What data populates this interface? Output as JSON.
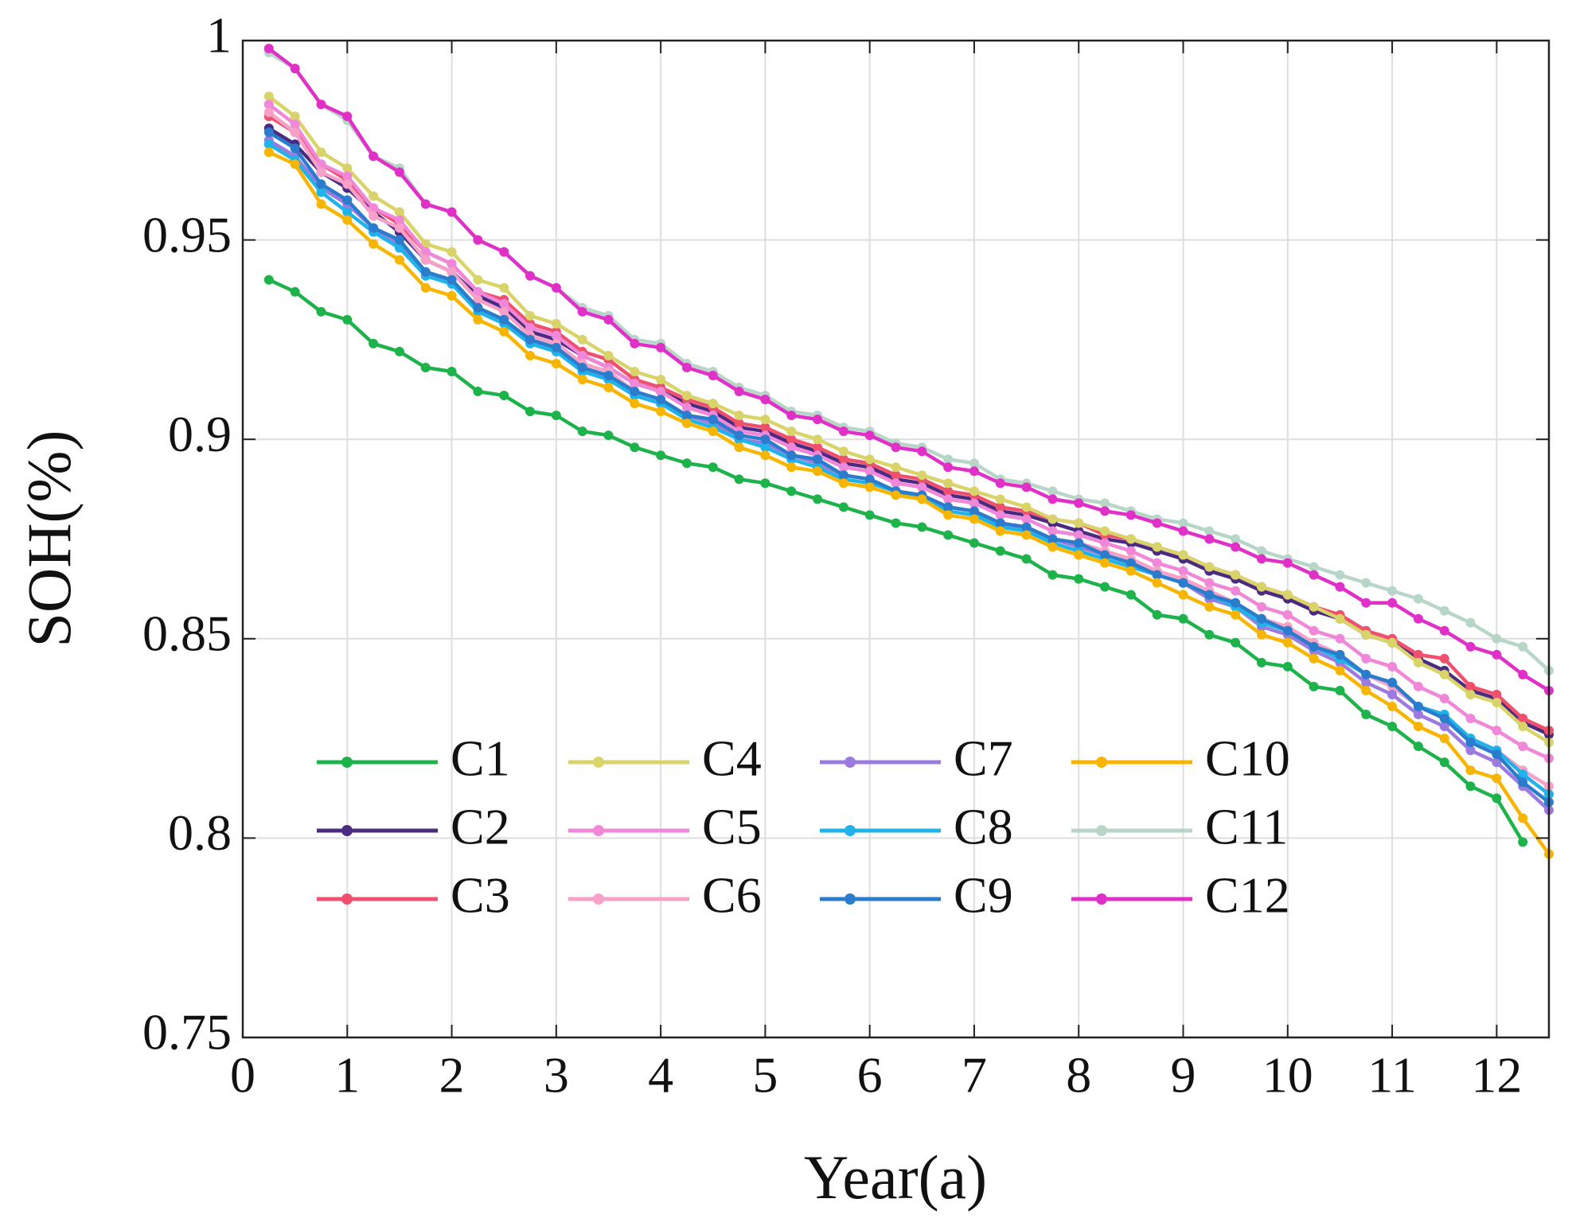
{
  "chart_data": {
    "type": "line",
    "xlabel": "Year(a)",
    "ylabel": "SOH(%)",
    "xlim": [
      0,
      12.5
    ],
    "ylim": [
      0.75,
      1
    ],
    "xticks": [
      0,
      1,
      2,
      3,
      4,
      5,
      6,
      7,
      8,
      9,
      10,
      11,
      12
    ],
    "yticks": [
      0.75,
      0.8,
      0.85,
      0.9,
      0.95,
      1
    ],
    "grid": true,
    "legend": "lower left",
    "x": [
      0.25,
      0.5,
      0.75,
      1,
      1.25,
      1.5,
      1.75,
      2,
      2.25,
      2.5,
      2.75,
      3,
      3.25,
      3.5,
      3.75,
      4,
      4.25,
      4.5,
      4.75,
      5,
      5.25,
      5.5,
      5.75,
      6,
      6.25,
      6.5,
      6.75,
      7,
      7.25,
      7.5,
      7.75,
      8,
      8.25,
      8.5,
      8.75,
      9,
      9.25,
      9.5,
      9.75,
      10,
      10.25,
      10.5,
      10.75,
      11,
      11.25,
      11.5,
      11.75,
      12,
      12.25,
      12.5
    ],
    "series": [
      {
        "name": "C1",
        "color": "#1db34a",
        "values": [
          0.94,
          0.937,
          0.932,
          0.93,
          0.924,
          0.922,
          0.918,
          0.917,
          0.912,
          0.911,
          0.907,
          0.906,
          0.902,
          0.901,
          0.898,
          0.896,
          0.894,
          0.893,
          0.89,
          0.889,
          0.887,
          0.885,
          0.883,
          0.881,
          0.879,
          0.878,
          0.876,
          0.874,
          0.872,
          0.87,
          0.866,
          0.865,
          0.863,
          0.861,
          0.856,
          0.855,
          0.851,
          0.849,
          0.844,
          0.843,
          0.838,
          0.837,
          0.831,
          0.828,
          0.823,
          0.819,
          0.813,
          0.81,
          0.799,
          null
        ]
      },
      {
        "name": "C2",
        "color": "#4b2a82",
        "values": [
          0.978,
          0.974,
          0.967,
          0.963,
          0.957,
          0.952,
          0.945,
          0.942,
          0.936,
          0.933,
          0.927,
          0.925,
          0.921,
          0.918,
          0.914,
          0.912,
          0.909,
          0.907,
          0.903,
          0.902,
          0.899,
          0.897,
          0.894,
          0.893,
          0.89,
          0.889,
          0.886,
          0.885,
          0.882,
          0.881,
          0.879,
          0.877,
          0.875,
          0.874,
          0.872,
          0.87,
          0.867,
          0.865,
          0.862,
          0.86,
          0.857,
          0.855,
          0.851,
          0.849,
          0.845,
          0.842,
          0.837,
          0.835,
          0.829,
          0.826
        ]
      },
      {
        "name": "C3",
        "color": "#f0506e",
        "values": [
          0.981,
          0.977,
          0.969,
          0.965,
          0.958,
          0.954,
          0.947,
          0.944,
          0.937,
          0.935,
          0.929,
          0.927,
          0.922,
          0.92,
          0.915,
          0.913,
          0.91,
          0.908,
          0.904,
          0.903,
          0.9,
          0.898,
          0.895,
          0.894,
          0.891,
          0.89,
          0.887,
          0.886,
          0.883,
          0.882,
          0.88,
          0.879,
          0.876,
          0.875,
          0.873,
          0.871,
          0.868,
          0.866,
          0.863,
          0.861,
          0.858,
          0.856,
          0.852,
          0.85,
          0.846,
          0.845,
          0.838,
          0.836,
          0.83,
          0.827
        ]
      },
      {
        "name": "C4",
        "color": "#d9d46a",
        "values": [
          0.986,
          0.981,
          0.972,
          0.968,
          0.961,
          0.957,
          0.949,
          0.947,
          0.94,
          0.938,
          0.931,
          0.929,
          0.925,
          0.921,
          0.917,
          0.915,
          0.911,
          0.909,
          0.906,
          0.905,
          0.902,
          0.9,
          0.897,
          0.895,
          0.893,
          0.891,
          0.889,
          0.887,
          0.885,
          0.883,
          0.88,
          0.879,
          0.877,
          0.875,
          0.873,
          0.871,
          0.868,
          0.866,
          0.863,
          0.861,
          0.858,
          0.855,
          0.851,
          0.849,
          0.844,
          0.841,
          0.836,
          0.834,
          0.828,
          0.824
        ]
      },
      {
        "name": "C5",
        "color": "#f087d8",
        "values": [
          0.984,
          0.979,
          0.969,
          0.966,
          0.958,
          0.955,
          0.947,
          0.944,
          0.937,
          0.934,
          0.928,
          0.926,
          0.921,
          0.918,
          0.914,
          0.912,
          0.908,
          0.906,
          0.902,
          0.901,
          0.898,
          0.896,
          0.893,
          0.892,
          0.889,
          0.888,
          0.885,
          0.884,
          0.881,
          0.88,
          0.877,
          0.876,
          0.874,
          0.872,
          0.869,
          0.867,
          0.864,
          0.862,
          0.858,
          0.856,
          0.852,
          0.85,
          0.845,
          0.843,
          0.838,
          0.835,
          0.83,
          0.827,
          0.823,
          0.82
        ]
      },
      {
        "name": "C6",
        "color": "#f7a0c8",
        "values": [
          0.982,
          0.977,
          0.967,
          0.964,
          0.956,
          0.953,
          0.945,
          0.942,
          0.935,
          0.932,
          0.926,
          0.924,
          0.919,
          0.917,
          0.912,
          0.91,
          0.906,
          0.904,
          0.9,
          0.899,
          0.896,
          0.894,
          0.891,
          0.89,
          0.887,
          0.886,
          0.883,
          0.882,
          0.879,
          0.878,
          0.875,
          0.874,
          0.872,
          0.87,
          0.867,
          0.865,
          0.862,
          0.859,
          0.855,
          0.853,
          0.849,
          0.846,
          0.841,
          0.838,
          0.833,
          0.83,
          0.825,
          0.822,
          0.817,
          0.813
        ]
      },
      {
        "name": "C7",
        "color": "#9b7be0",
        "values": [
          0.975,
          0.971,
          0.963,
          0.959,
          0.953,
          0.949,
          0.942,
          0.939,
          0.933,
          0.93,
          0.925,
          0.922,
          0.918,
          0.915,
          0.911,
          0.909,
          0.906,
          0.904,
          0.9,
          0.899,
          0.896,
          0.894,
          0.891,
          0.89,
          0.887,
          0.886,
          0.883,
          0.882,
          0.879,
          0.877,
          0.875,
          0.873,
          0.871,
          0.869,
          0.866,
          0.864,
          0.86,
          0.858,
          0.853,
          0.851,
          0.847,
          0.844,
          0.839,
          0.836,
          0.831,
          0.828,
          0.822,
          0.819,
          0.813,
          0.807
        ]
      },
      {
        "name": "C8",
        "color": "#1fb3ea",
        "values": [
          0.974,
          0.97,
          0.962,
          0.957,
          0.952,
          0.948,
          0.941,
          0.939,
          0.932,
          0.929,
          0.924,
          0.922,
          0.917,
          0.915,
          0.911,
          0.909,
          0.905,
          0.903,
          0.9,
          0.898,
          0.895,
          0.893,
          0.89,
          0.889,
          0.887,
          0.885,
          0.882,
          0.881,
          0.878,
          0.877,
          0.874,
          0.872,
          0.87,
          0.868,
          0.866,
          0.864,
          0.861,
          0.858,
          0.854,
          0.852,
          0.848,
          0.845,
          0.841,
          0.839,
          0.833,
          0.831,
          0.825,
          0.822,
          0.816,
          0.811
        ]
      },
      {
        "name": "C9",
        "color": "#2b7ccc",
        "values": [
          0.977,
          0.973,
          0.964,
          0.96,
          0.953,
          0.95,
          0.942,
          0.94,
          0.933,
          0.93,
          0.925,
          0.923,
          0.918,
          0.916,
          0.912,
          0.91,
          0.906,
          0.905,
          0.901,
          0.9,
          0.896,
          0.895,
          0.891,
          0.89,
          0.887,
          0.886,
          0.883,
          0.882,
          0.879,
          0.878,
          0.875,
          0.874,
          0.871,
          0.869,
          0.866,
          0.864,
          0.861,
          0.859,
          0.855,
          0.852,
          0.848,
          0.846,
          0.841,
          0.839,
          0.833,
          0.83,
          0.824,
          0.821,
          0.814,
          0.809
        ]
      },
      {
        "name": "C10",
        "color": "#f7b500",
        "values": [
          0.972,
          0.969,
          0.959,
          0.955,
          0.949,
          0.945,
          0.938,
          0.936,
          0.93,
          0.927,
          0.921,
          0.919,
          0.915,
          0.913,
          0.909,
          0.907,
          0.904,
          0.902,
          0.898,
          0.896,
          0.893,
          0.892,
          0.889,
          0.888,
          0.886,
          0.885,
          0.881,
          0.88,
          0.877,
          0.876,
          0.873,
          0.871,
          0.869,
          0.867,
          0.864,
          0.861,
          0.858,
          0.856,
          0.851,
          0.849,
          0.845,
          0.842,
          0.837,
          0.833,
          0.828,
          0.825,
          0.817,
          0.815,
          0.805,
          0.796
        ]
      },
      {
        "name": "C11",
        "color": "#b8d6c8",
        "values": [
          0.997,
          0.993,
          0.984,
          0.98,
          0.971,
          0.968,
          0.959,
          0.957,
          0.95,
          0.947,
          0.941,
          0.938,
          0.933,
          0.931,
          0.925,
          0.924,
          0.919,
          0.917,
          0.913,
          0.911,
          0.907,
          0.906,
          0.903,
          0.902,
          0.899,
          0.898,
          0.895,
          0.894,
          0.89,
          0.889,
          0.887,
          0.885,
          0.884,
          0.882,
          0.88,
          0.879,
          0.877,
          0.875,
          0.872,
          0.87,
          0.868,
          0.866,
          0.864,
          0.862,
          0.86,
          0.857,
          0.854,
          0.85,
          0.848,
          0.842
        ]
      },
      {
        "name": "C12",
        "color": "#e030c8",
        "values": [
          0.998,
          0.993,
          0.984,
          0.981,
          0.971,
          0.967,
          0.959,
          0.957,
          0.95,
          0.947,
          0.941,
          0.938,
          0.932,
          0.93,
          0.924,
          0.923,
          0.918,
          0.916,
          0.912,
          0.91,
          0.906,
          0.905,
          0.902,
          0.901,
          0.898,
          0.897,
          0.893,
          0.892,
          0.889,
          0.888,
          0.885,
          0.884,
          0.882,
          0.881,
          0.879,
          0.877,
          0.875,
          0.873,
          0.87,
          0.869,
          0.866,
          0.863,
          0.859,
          0.859,
          0.855,
          0.852,
          0.848,
          0.846,
          0.841,
          0.837
        ]
      }
    ]
  }
}
